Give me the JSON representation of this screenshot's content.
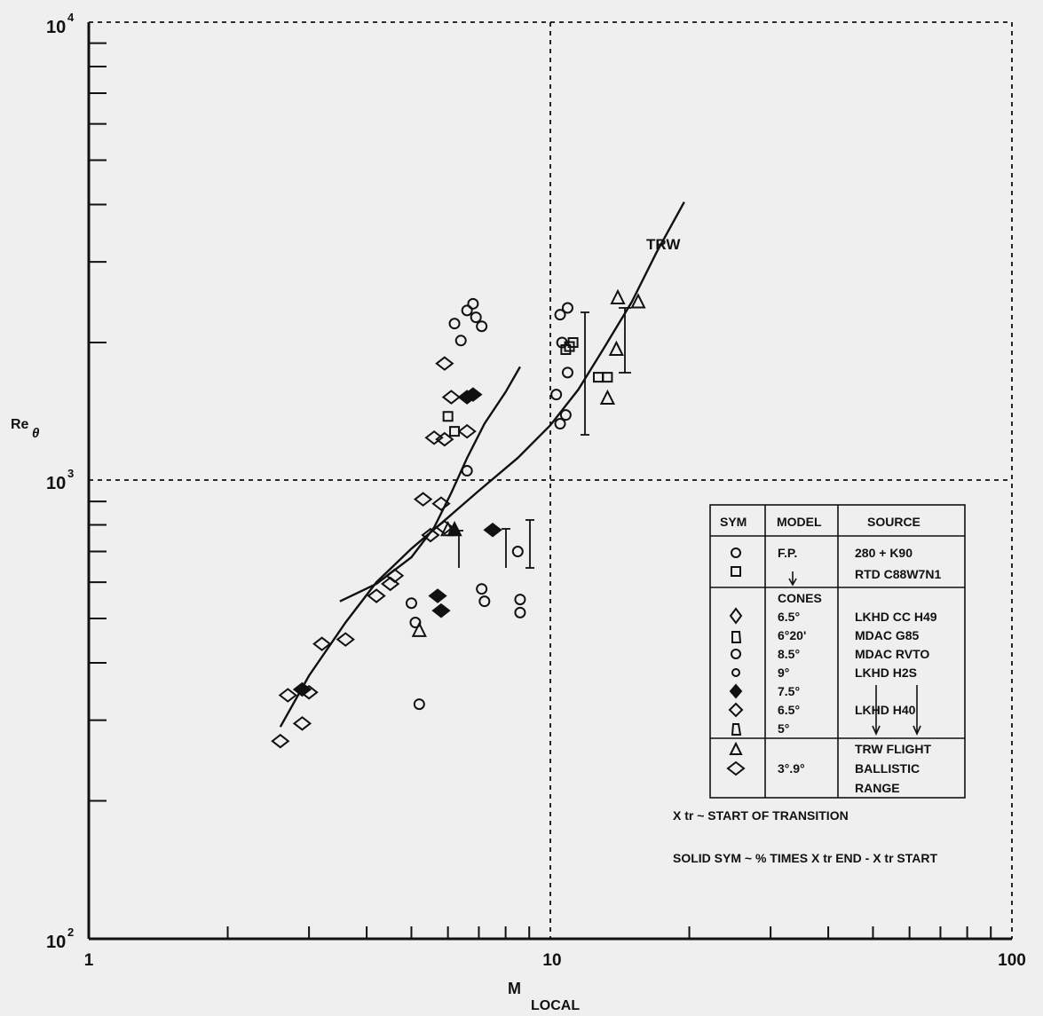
{
  "chart_data": {
    "type": "scatter",
    "x_scale": "log",
    "y_scale": "log",
    "xlim": [
      1,
      100
    ],
    "ylim": [
      100,
      10000
    ],
    "grid": "dashed lines at x=10 and y=1000; dashed frame at top and right",
    "xlabel_main": "M",
    "xlabel_sub": "LOCAL",
    "ylabel_main": "Re",
    "ylabel_sub": "θ",
    "x_ticks": [
      {
        "value": 1,
        "label": "1"
      },
      {
        "value": 10,
        "label": "10"
      },
      {
        "value": 100,
        "label": "100"
      }
    ],
    "y_ticks": [
      {
        "value": 100,
        "base": "10",
        "exp": "2"
      },
      {
        "value": 1000,
        "base": "10",
        "exp": "3"
      },
      {
        "value": 10000,
        "base": "10",
        "exp": "4"
      }
    ],
    "curve_label": "TRW",
    "curve": [
      [
        2.6,
        290
      ],
      [
        3.0,
        375
      ],
      [
        3.6,
        490
      ],
      [
        4.2,
        600
      ],
      [
        5.0,
        710
      ],
      [
        6.0,
        830
      ],
      [
        7.0,
        950
      ],
      [
        8.5,
        1120
      ],
      [
        10,
        1320
      ],
      [
        11.5,
        1580
      ],
      [
        13,
        1930
      ],
      [
        15,
        2450
      ],
      [
        17,
        3150
      ],
      [
        19.5,
        4050
      ]
    ],
    "curve2": [
      [
        3.5,
        545
      ],
      [
        4.2,
        595
      ],
      [
        5.0,
        680
      ],
      [
        5.6,
        790
      ],
      [
        6.1,
        940
      ],
      [
        6.6,
        1120
      ],
      [
        7.2,
        1330
      ],
      [
        8.0,
        1560
      ],
      [
        8.6,
        1770
      ]
    ],
    "series": [
      {
        "symbol": "circle",
        "points": [
          [
            6.2,
            2200
          ],
          [
            6.4,
            2020
          ],
          [
            6.6,
            2350
          ],
          [
            6.8,
            2430
          ],
          [
            6.9,
            2270
          ],
          [
            7.1,
            2170
          ],
          [
            10.5,
            2300
          ],
          [
            10.9,
            2380
          ],
          [
            10.6,
            2000
          ],
          [
            10.9,
            1720
          ],
          [
            10.3,
            1540
          ],
          [
            10.5,
            1330
          ],
          [
            10.8,
            1390
          ],
          [
            6.6,
            1050
          ],
          [
            5.0,
            540
          ],
          [
            5.1,
            490
          ],
          [
            7.1,
            580
          ],
          [
            7.2,
            545
          ],
          [
            8.5,
            700
          ],
          [
            8.6,
            550
          ],
          [
            8.6,
            515
          ],
          [
            5.2,
            325
          ]
        ]
      },
      {
        "symbol": "square",
        "points": [
          [
            10.8,
            1930
          ],
          [
            11.0,
            1960
          ],
          [
            11.2,
            2000
          ],
          [
            6.0,
            1380
          ],
          [
            6.2,
            1280
          ],
          [
            12.7,
            1680
          ],
          [
            13.3,
            1680
          ]
        ]
      },
      {
        "symbol": "diamond",
        "points": [
          [
            5.9,
            1800
          ],
          [
            6.1,
            1520
          ],
          [
            5.6,
            1240
          ],
          [
            5.9,
            1230
          ],
          [
            6.6,
            1280
          ],
          [
            5.3,
            910
          ],
          [
            5.8,
            890
          ],
          [
            5.9,
            790
          ],
          [
            4.6,
            620
          ],
          [
            3.6,
            450
          ],
          [
            3.2,
            440
          ],
          [
            4.2,
            560
          ],
          [
            4.5,
            595
          ],
          [
            2.6,
            270
          ],
          [
            2.9,
            295
          ],
          [
            2.7,
            340
          ],
          [
            3.0,
            345
          ],
          [
            5.5,
            760
          ]
        ]
      },
      {
        "symbol": "triangle",
        "points": [
          [
            14.0,
            2500
          ],
          [
            13.9,
            1930
          ],
          [
            13.3,
            1510
          ],
          [
            15.5,
            2450
          ],
          [
            6.0,
            780
          ],
          [
            5.2,
            470
          ]
        ]
      },
      {
        "symbol": "solid-diamond",
        "points": [
          [
            2.9,
            350
          ],
          [
            5.7,
            560
          ],
          [
            5.8,
            520
          ],
          [
            6.6,
            1520
          ],
          [
            6.8,
            1540
          ],
          [
            7.5,
            780
          ]
        ]
      },
      {
        "symbol": "solid-triangle",
        "points": [
          [
            6.2,
            780
          ]
        ]
      }
    ],
    "legend": {
      "headers": [
        "SYM",
        "MODEL",
        "SOURCE"
      ],
      "rows": [
        {
          "model": "F.P.",
          "source": "280 + K90"
        },
        {
          "model": "",
          "source": "RTD C88W7N1"
        },
        {
          "model": "CONES",
          "source": ""
        },
        {
          "model": "6.5°",
          "source": "LKHD CC H49"
        },
        {
          "model": "6°20'",
          "source": "MDAC G85"
        },
        {
          "model": "8.5°",
          "source": "MDAC RVTO"
        },
        {
          "model": "9°",
          "source": "LKHD H2S"
        },
        {
          "model": "7.5°",
          "source": ""
        },
        {
          "model": "6.5°",
          "source": "LKHD H40"
        },
        {
          "model": "5°",
          "source": ""
        },
        {
          "model": "",
          "source": "TRW FLIGHT"
        },
        {
          "model": "3°.9°",
          "source": "BALLISTIC"
        },
        {
          "model": "",
          "source": "RANGE"
        }
      ]
    },
    "notes": [
      "X tr ~ START OF TRANSITION",
      "SOLID SYM ~ % TIMES X tr END - X tr START"
    ]
  }
}
